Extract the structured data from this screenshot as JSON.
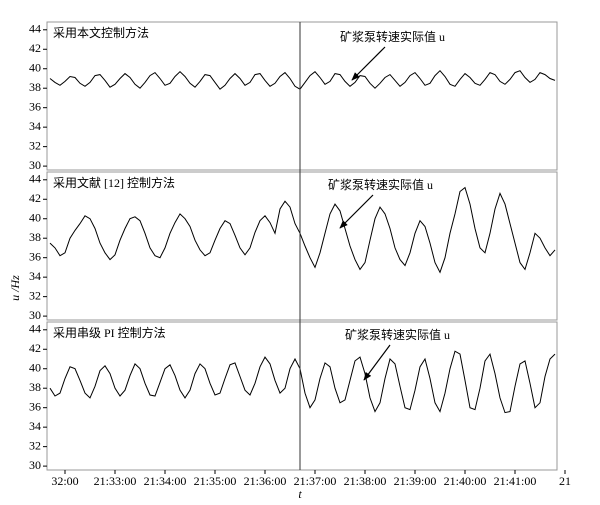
{
  "chart_data": [
    {
      "type": "line",
      "title": "采用本文控制方法",
      "annotation": "矿浆泵转速实际值 u",
      "ylim": [
        29.6,
        44.8
      ],
      "yticks": [
        30,
        32,
        34,
        36,
        38,
        40,
        42,
        44
      ],
      "xlim": [
        1.64,
        11.84
      ],
      "x": [
        1.7,
        1.8,
        1.9,
        2.0,
        2.1,
        2.2,
        2.3,
        2.4,
        2.5,
        2.6,
        2.7,
        2.8,
        2.9,
        3.0,
        3.1,
        3.2,
        3.3,
        3.4,
        3.5,
        3.6,
        3.7,
        3.8,
        3.9,
        4.0,
        4.1,
        4.2,
        4.3,
        4.4,
        4.5,
        4.6,
        4.7,
        4.8,
        4.9,
        5.0,
        5.1,
        5.2,
        5.3,
        5.4,
        5.5,
        5.6,
        5.7,
        5.8,
        5.9,
        6.0,
        6.1,
        6.2,
        6.3,
        6.4,
        6.5,
        6.6,
        6.7,
        6.8,
        6.9,
        7.0,
        7.1,
        7.2,
        7.3,
        7.4,
        7.5,
        7.6,
        7.7,
        7.8,
        7.9,
        8.0,
        8.1,
        8.2,
        8.3,
        8.4,
        8.5,
        8.6,
        8.7,
        8.8,
        8.9,
        9.0,
        9.1,
        9.2,
        9.3,
        9.4,
        9.5,
        9.6,
        9.7,
        9.8,
        9.9,
        10.0,
        10.1,
        10.2,
        10.3,
        10.4,
        10.5,
        10.6,
        10.7,
        10.8,
        10.9,
        11.0,
        11.1,
        11.2,
        11.3,
        11.4,
        11.5,
        11.6,
        11.7,
        11.8
      ],
      "color": "#000000",
      "values": [
        39.0,
        38.6,
        38.3,
        38.7,
        39.2,
        39.1,
        38.5,
        38.2,
        38.6,
        39.3,
        39.4,
        38.8,
        38.1,
        38.4,
        39.0,
        39.5,
        39.1,
        38.4,
        38.0,
        38.6,
        39.3,
        39.6,
        39.0,
        38.3,
        38.5,
        39.2,
        39.7,
        39.2,
        38.5,
        38.1,
        38.7,
        39.4,
        39.3,
        38.6,
        37.9,
        38.3,
        39.0,
        39.5,
        39.0,
        38.3,
        38.6,
        39.4,
        39.5,
        38.8,
        38.2,
        38.5,
        39.2,
        39.6,
        39.0,
        38.2,
        37.9,
        38.6,
        39.3,
        39.7,
        39.1,
        38.4,
        38.7,
        39.5,
        39.4,
        38.7,
        38.2,
        38.6,
        39.3,
        39.2,
        38.5,
        38.0,
        38.5,
        39.1,
        39.4,
        38.8,
        38.2,
        38.6,
        39.3,
        39.6,
        39.0,
        38.3,
        38.5,
        39.3,
        39.8,
        39.2,
        38.4,
        38.2,
        38.9,
        39.5,
        39.1,
        38.5,
        38.3,
        38.9,
        39.6,
        39.4,
        38.7,
        38.4,
        38.9,
        39.6,
        39.8,
        39.1,
        38.6,
        38.9,
        39.6,
        39.4,
        39.0,
        38.8
      ]
    },
    {
      "type": "line",
      "title": "采用文献 [12] 控制方法",
      "annotation": "矿浆泵转速实际值 u",
      "ylabel": "u /Hz",
      "ylim": [
        29.6,
        44.8
      ],
      "yticks": [
        30,
        32,
        34,
        36,
        38,
        40,
        42,
        44
      ],
      "xlim": [
        1.64,
        11.84
      ],
      "x": [
        1.7,
        1.8,
        1.9,
        2.0,
        2.1,
        2.2,
        2.3,
        2.4,
        2.5,
        2.6,
        2.7,
        2.8,
        2.9,
        3.0,
        3.1,
        3.2,
        3.3,
        3.4,
        3.5,
        3.6,
        3.7,
        3.8,
        3.9,
        4.0,
        4.1,
        4.2,
        4.3,
        4.4,
        4.5,
        4.6,
        4.7,
        4.8,
        4.9,
        5.0,
        5.1,
        5.2,
        5.3,
        5.4,
        5.5,
        5.6,
        5.7,
        5.8,
        5.9,
        6.0,
        6.1,
        6.2,
        6.3,
        6.4,
        6.5,
        6.6,
        6.7,
        6.8,
        6.9,
        7.0,
        7.1,
        7.2,
        7.3,
        7.4,
        7.5,
        7.6,
        7.7,
        7.8,
        7.9,
        8.0,
        8.1,
        8.2,
        8.3,
        8.4,
        8.5,
        8.6,
        8.7,
        8.8,
        8.9,
        9.0,
        9.1,
        9.2,
        9.3,
        9.4,
        9.5,
        9.6,
        9.7,
        9.8,
        9.9,
        10.0,
        10.1,
        10.2,
        10.3,
        10.4,
        10.5,
        10.6,
        10.7,
        10.8,
        10.9,
        11.0,
        11.1,
        11.2,
        11.3,
        11.4,
        11.5,
        11.6,
        11.7,
        11.8
      ],
      "color": "#000000",
      "values": [
        37.5,
        37.0,
        36.2,
        36.5,
        38.0,
        38.8,
        39.5,
        40.3,
        40.0,
        39.0,
        37.5,
        36.5,
        35.8,
        36.3,
        37.8,
        39.0,
        40.0,
        40.2,
        39.8,
        38.5,
        37.0,
        36.2,
        36.0,
        37.0,
        38.5,
        39.6,
        40.5,
        40.0,
        39.2,
        37.8,
        36.8,
        36.2,
        36.5,
        37.8,
        39.0,
        39.8,
        39.5,
        38.3,
        37.0,
        36.3,
        37.0,
        38.6,
        39.8,
        40.3,
        39.6,
        38.5,
        41.0,
        41.8,
        41.2,
        39.5,
        38.5,
        37.2,
        36.0,
        35.0,
        36.5,
        38.5,
        40.5,
        41.5,
        40.8,
        39.0,
        37.2,
        35.8,
        34.8,
        35.5,
        37.8,
        40.0,
        41.2,
        40.5,
        39.0,
        37.0,
        35.8,
        35.2,
        36.5,
        38.5,
        39.8,
        39.2,
        37.5,
        35.5,
        34.5,
        36.0,
        38.5,
        40.5,
        42.8,
        43.2,
        41.5,
        39.0,
        37.0,
        36.5,
        38.5,
        41.0,
        42.6,
        41.5,
        39.5,
        37.5,
        35.5,
        34.8,
        36.5,
        38.5,
        38.0,
        37.0,
        36.2,
        36.8
      ]
    },
    {
      "type": "line",
      "title": "采用串级 PI 控制方法",
      "annotation": "矿浆泵转速实际值 u",
      "xlabel": "t",
      "ylim": [
        29.6,
        44.8
      ],
      "yticks": [
        30,
        32,
        34,
        36,
        38,
        40,
        42,
        44
      ],
      "xlim": [
        1.64,
        11.84
      ],
      "xticks": [
        {
          "value": 2,
          "label": "32:00"
        },
        {
          "value": 3,
          "label": "21:33:00"
        },
        {
          "value": 4,
          "label": "21:34:00"
        },
        {
          "value": 5,
          "label": "21:35:00"
        },
        {
          "value": 6,
          "label": "21:36:00"
        },
        {
          "value": 7,
          "label": "21:37:00"
        },
        {
          "value": 8,
          "label": "21:38:00"
        },
        {
          "value": 9,
          "label": "21:39:00"
        },
        {
          "value": 10,
          "label": "21:40:00"
        },
        {
          "value": 11,
          "label": "21:41:00"
        },
        {
          "value": 12,
          "label": "21"
        }
      ],
      "x": [
        1.7,
        1.8,
        1.9,
        2.0,
        2.1,
        2.2,
        2.3,
        2.4,
        2.5,
        2.6,
        2.7,
        2.8,
        2.9,
        3.0,
        3.1,
        3.2,
        3.3,
        3.4,
        3.5,
        3.6,
        3.7,
        3.8,
        3.9,
        4.0,
        4.1,
        4.2,
        4.3,
        4.4,
        4.5,
        4.6,
        4.7,
        4.8,
        4.9,
        5.0,
        5.1,
        5.2,
        5.3,
        5.4,
        5.5,
        5.6,
        5.7,
        5.8,
        5.9,
        6.0,
        6.1,
        6.2,
        6.3,
        6.4,
        6.5,
        6.6,
        6.7,
        6.8,
        6.9,
        7.0,
        7.1,
        7.2,
        7.3,
        7.4,
        7.5,
        7.6,
        7.7,
        7.8,
        7.9,
        8.0,
        8.1,
        8.2,
        8.3,
        8.4,
        8.5,
        8.6,
        8.7,
        8.8,
        8.9,
        9.0,
        9.1,
        9.2,
        9.3,
        9.4,
        9.5,
        9.6,
        9.7,
        9.8,
        9.9,
        10.0,
        10.1,
        10.2,
        10.3,
        10.4,
        10.5,
        10.6,
        10.7,
        10.8,
        10.9,
        11.0,
        11.1,
        11.2,
        11.3,
        11.4,
        11.5,
        11.6,
        11.7,
        11.8
      ],
      "color": "#000000",
      "values": [
        38.0,
        37.2,
        37.5,
        39.0,
        40.2,
        40.0,
        38.8,
        37.5,
        37.0,
        38.2,
        39.8,
        40.3,
        39.5,
        38.0,
        37.2,
        37.8,
        39.3,
        40.5,
        40.0,
        38.5,
        37.3,
        37.2,
        38.6,
        40.0,
        40.4,
        39.3,
        37.8,
        37.0,
        37.8,
        39.5,
        40.5,
        40.0,
        38.5,
        37.3,
        37.5,
        39.0,
        40.4,
        40.6,
        39.2,
        37.8,
        37.3,
        38.5,
        40.2,
        41.2,
        40.5,
        38.8,
        37.5,
        38.0,
        40.0,
        41.0,
        40.0,
        37.5,
        36.0,
        36.8,
        39.0,
        40.6,
        40.2,
        38.0,
        36.5,
        36.8,
        38.8,
        40.8,
        41.2,
        39.5,
        37.0,
        35.6,
        36.5,
        39.0,
        41.0,
        40.5,
        38.2,
        36.0,
        35.8,
        37.8,
        40.2,
        41.0,
        39.0,
        36.5,
        35.6,
        37.5,
        40.0,
        41.8,
        41.5,
        38.8,
        36.0,
        35.8,
        38.0,
        40.8,
        41.5,
        39.5,
        37.0,
        35.5,
        35.6,
        38.2,
        40.5,
        40.8,
        38.5,
        36.0,
        36.5,
        39.2,
        41.0,
        41.5
      ]
    }
  ]
}
